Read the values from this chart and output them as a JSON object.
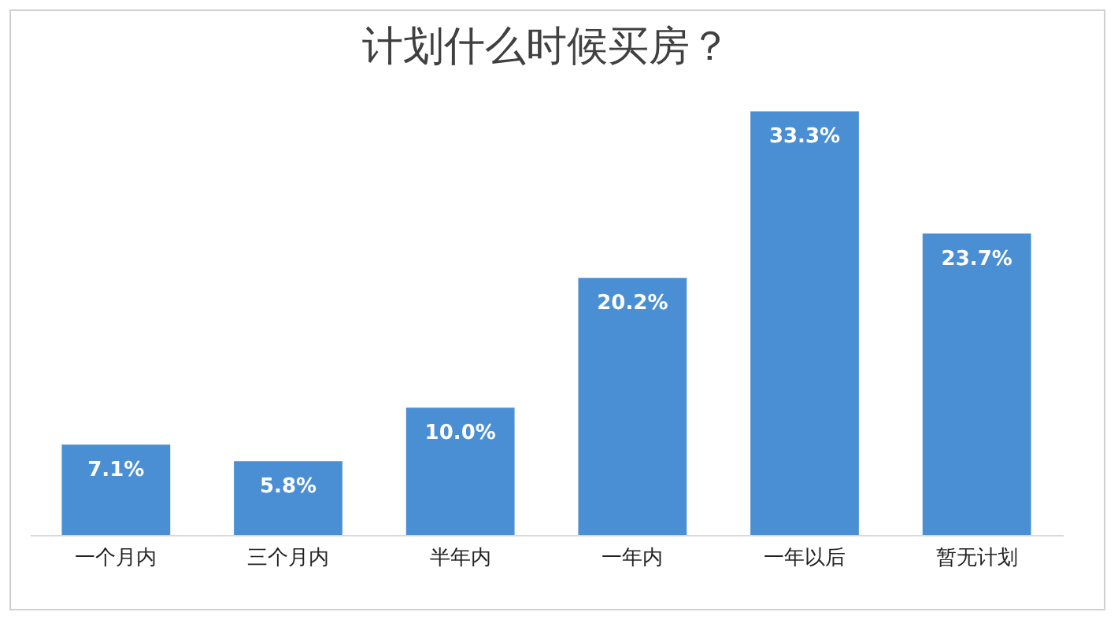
{
  "chart_data": {
    "type": "bar",
    "title": "计划什么时候买房？",
    "categories": [
      "一个月内",
      "三个月内",
      "半年内",
      "一年内",
      "一年以后",
      "暂无计划"
    ],
    "values": [
      7.1,
      5.8,
      10.0,
      20.2,
      33.3,
      23.7
    ],
    "value_labels": [
      "7.1%",
      "5.8%",
      "10.0%",
      "20.2%",
      "33.3%",
      "23.7%"
    ],
    "color": "#4a8fd4",
    "grid": false
  }
}
